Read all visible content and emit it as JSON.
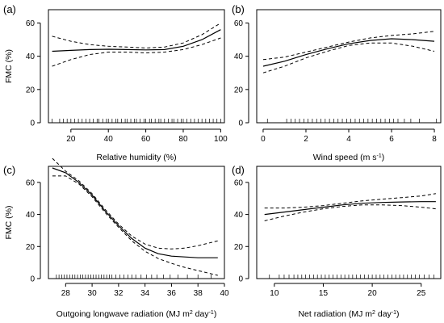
{
  "chart_data": [
    {
      "type": "line",
      "panel_label": "(a)",
      "xlabel": "Relative humidity (%)",
      "xlabel_sup": "",
      "xlabel_end": "",
      "ylabel": "FMC (%)",
      "xlim": [
        8,
        102
      ],
      "ylim": [
        0,
        68
      ],
      "xticks": [
        20,
        40,
        60,
        80,
        100
      ],
      "yticks": [
        0,
        20,
        40,
        60
      ],
      "series": [
        {
          "role": "fit",
          "style": "solid",
          "x": [
            10,
            20,
            30,
            40,
            50,
            60,
            70,
            80,
            90,
            100
          ],
          "y": [
            43,
            43.5,
            44,
            44.2,
            44,
            43.8,
            44,
            46,
            50,
            56
          ]
        },
        {
          "role": "ci_upper",
          "style": "dashed",
          "x": [
            10,
            20,
            30,
            40,
            50,
            60,
            70,
            80,
            90,
            100
          ],
          "y": [
            52,
            49,
            47,
            46,
            45.5,
            45,
            45.5,
            48,
            53,
            60
          ]
        },
        {
          "role": "ci_lower",
          "style": "dashed",
          "x": [
            10,
            20,
            30,
            40,
            50,
            60,
            70,
            80,
            90,
            100
          ],
          "y": [
            34,
            38,
            41,
            42.5,
            42.5,
            42,
            42.5,
            44,
            47,
            51
          ]
        }
      ],
      "rug": [
        10,
        14,
        16,
        18,
        20,
        22,
        24,
        26,
        28,
        30,
        32,
        34,
        35,
        37,
        39,
        40,
        42,
        44,
        45,
        47,
        49,
        50,
        52,
        54,
        55,
        57,
        59,
        60,
        62,
        63,
        65,
        67,
        68,
        70,
        72,
        74,
        75,
        77,
        79,
        80,
        82,
        84,
        86,
        88,
        90,
        92,
        94,
        96,
        98,
        100
      ]
    },
    {
      "type": "line",
      "panel_label": "(b)",
      "xlabel": "Wind speed (m s",
      "xlabel_sup": "-1",
      "xlabel_end": ")",
      "ylabel": "",
      "xlim": [
        -0.3,
        8.3
      ],
      "ylim": [
        0,
        68
      ],
      "xticks": [
        0,
        2,
        4,
        6,
        8
      ],
      "yticks": [
        0,
        20,
        40,
        60
      ],
      "series": [
        {
          "role": "fit",
          "style": "solid",
          "x": [
            0,
            1,
            2,
            3,
            4,
            5,
            6,
            7,
            8
          ],
          "y": [
            34,
            37,
            41,
            44.5,
            47.5,
            49.5,
            50.5,
            50,
            49
          ]
        },
        {
          "role": "ci_upper",
          "style": "dashed",
          "x": [
            0,
            1,
            2,
            3,
            4,
            5,
            6,
            7,
            8
          ],
          "y": [
            38,
            39.5,
            42.5,
            45.5,
            48.5,
            51,
            52.5,
            53.5,
            55
          ]
        },
        {
          "role": "ci_lower",
          "style": "dashed",
          "x": [
            0,
            1,
            2,
            3,
            4,
            5,
            6,
            7,
            8
          ],
          "y": [
            30,
            34,
            39,
            43,
            46.5,
            48,
            48,
            46,
            43
          ]
        }
      ],
      "rug": [
        0.2,
        1.1,
        1.3,
        1.5,
        1.7,
        1.9,
        2.1,
        2.3,
        2.5,
        2.7,
        2.9,
        3.1,
        3.3,
        3.5,
        3.7,
        3.9,
        4.1,
        4.3,
        4.5,
        4.7,
        4.9,
        5.1,
        5.3,
        5.5,
        5.7,
        5.9,
        6.1,
        6.3,
        6.6,
        6.9,
        7.3,
        8.1
      ]
    },
    {
      "type": "line",
      "panel_label": "(c)",
      "xlabel": "Outgoing longwave radiation (MJ m",
      "xlabel_sup": "2",
      "xlabel_end": " day",
      "xlabel_sup2": "-1",
      "xlabel_end2": ")",
      "ylabel": "FMC (%)",
      "xlim": [
        26.7,
        40
      ],
      "ylim": [
        0,
        70
      ],
      "xticks": [
        28,
        30,
        32,
        34,
        36,
        38,
        40
      ],
      "yticks": [
        0,
        20,
        40,
        60
      ],
      "series": [
        {
          "role": "fit",
          "style": "solid",
          "x": [
            27,
            28,
            29,
            30,
            31,
            32,
            33,
            34,
            35,
            36,
            37,
            38,
            39.5
          ],
          "y": [
            69,
            66,
            60,
            52,
            42,
            33,
            25,
            19,
            15.5,
            14,
            13.5,
            13,
            13
          ]
        },
        {
          "role": "ci_upper",
          "style": "dashed",
          "x": [
            27,
            28,
            29,
            30,
            31,
            32,
            33,
            34,
            35,
            36,
            37,
            38,
            39.5
          ],
          "y": [
            75,
            67,
            61,
            53,
            43,
            34,
            26.5,
            21.5,
            19,
            18.5,
            19,
            20.5,
            23.5
          ]
        },
        {
          "role": "ci_lower",
          "style": "dashed",
          "x": [
            27,
            28,
            29,
            30,
            31,
            32,
            33,
            34,
            35,
            36,
            37,
            38,
            39.5
          ],
          "y": [
            64,
            64,
            59,
            51,
            41,
            32,
            23.5,
            17,
            12.5,
            9.5,
            7,
            5,
            2
          ]
        }
      ],
      "rug": [
        27.3,
        27.5,
        27.7,
        27.9,
        28.1,
        28.3,
        28.5,
        28.7,
        28.9,
        29.1,
        29.3,
        29.5,
        29.7,
        29.9,
        30.1,
        30.3,
        30.5,
        30.7,
        30.9,
        31.1,
        31.3,
        31.5,
        31.8,
        32.1,
        32.4,
        32.7,
        33.0,
        33.3,
        33.7,
        34.1,
        34.5,
        34.9,
        35.4,
        35.9,
        36.5,
        37.2,
        38.0,
        39.0
      ]
    },
    {
      "type": "line",
      "panel_label": "(d)",
      "xlabel": "Net radiation (MJ m",
      "xlabel_sup": "2",
      "xlabel_end": " day",
      "xlabel_sup2": "-1",
      "xlabel_end2": ")",
      "ylabel": "",
      "xlim": [
        8.2,
        27
      ],
      "ylim": [
        0,
        70
      ],
      "xticks": [
        10,
        15,
        20,
        25
      ],
      "yticks": [
        0,
        20,
        40,
        60
      ],
      "series": [
        {
          "role": "fit",
          "style": "solid",
          "x": [
            9,
            11,
            13,
            15,
            17,
            19,
            21,
            23,
            25,
            26.5
          ],
          "y": [
            40,
            41.5,
            43,
            44.5,
            46,
            47,
            47.5,
            47.8,
            48,
            48
          ]
        },
        {
          "role": "ci_upper",
          "style": "dashed",
          "x": [
            9,
            11,
            13,
            15,
            17,
            19,
            21,
            23,
            25,
            26.5
          ],
          "y": [
            44,
            44,
            44.5,
            45.5,
            47,
            48.5,
            49.5,
            50.5,
            51.5,
            53
          ]
        },
        {
          "role": "ci_lower",
          "style": "dashed",
          "x": [
            9,
            11,
            13,
            15,
            17,
            19,
            21,
            23,
            25,
            26.5
          ],
          "y": [
            36,
            39,
            41.5,
            43.5,
            45,
            46,
            46,
            45.5,
            44.5,
            43.5
          ]
        }
      ],
      "rug": [
        9.5,
        10.5,
        11.0,
        11.5,
        12.0,
        12.4,
        12.8,
        13.2,
        13.6,
        14.0,
        14.4,
        14.8,
        15.2,
        15.6,
        16.0,
        16.4,
        16.8,
        17.2,
        17.6,
        18.0,
        18.4,
        18.8,
        19.2,
        19.6,
        20.0,
        20.4,
        20.8,
        21.2,
        21.6,
        22.0,
        22.4,
        22.8,
        23.2,
        23.6,
        24.0,
        24.4,
        24.8,
        25.3,
        25.8,
        26.3
      ]
    }
  ]
}
